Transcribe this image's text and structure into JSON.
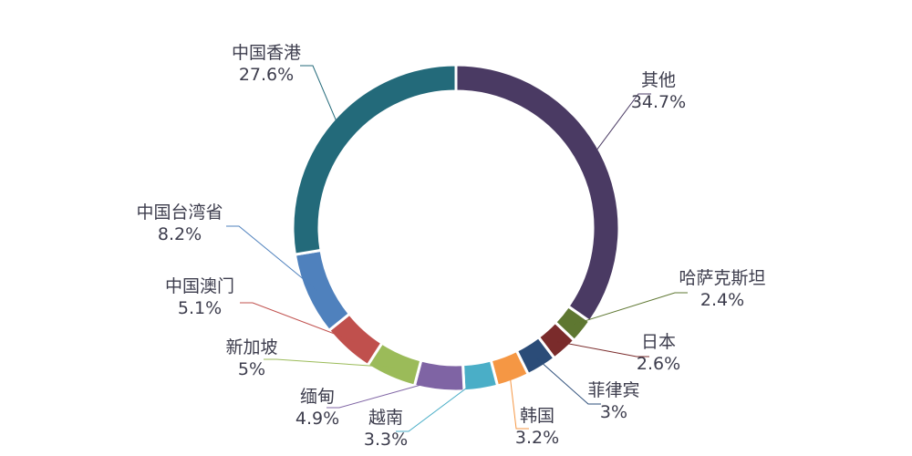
{
  "chart_data": {
    "type": "pie",
    "donut": true,
    "title": "",
    "slices": [
      {
        "label": "其他",
        "value": 34.7,
        "display": "34.7%",
        "color": "#4a3a63"
      },
      {
        "label": "哈萨克斯坦",
        "value": 2.4,
        "display": "2.4%",
        "color": "#5e7731"
      },
      {
        "label": "日本",
        "value": 2.6,
        "display": "2.6%",
        "color": "#7a2b2b"
      },
      {
        "label": "菲律宾",
        "value": 3.0,
        "display": "3%",
        "color": "#2b4c78"
      },
      {
        "label": "韩国",
        "value": 3.2,
        "display": "3.2%",
        "color": "#f59744"
      },
      {
        "label": "越南",
        "value": 3.3,
        "display": "3.3%",
        "color": "#4aaec7"
      },
      {
        "label": "缅甸",
        "value": 4.9,
        "display": "4.9%",
        "color": "#7f64a4"
      },
      {
        "label": "新加坡",
        "value": 5.0,
        "display": "5%",
        "color": "#9bbb59"
      },
      {
        "label": "中国澳门",
        "value": 5.1,
        "display": "5.1%",
        "color": "#c0504d"
      },
      {
        "label": "中国台湾省",
        "value": 8.2,
        "display": "8.2%",
        "color": "#4f81bd"
      },
      {
        "label": "中国香港",
        "value": 27.6,
        "display": "27.6%",
        "color": "#236a7a"
      }
    ]
  }
}
